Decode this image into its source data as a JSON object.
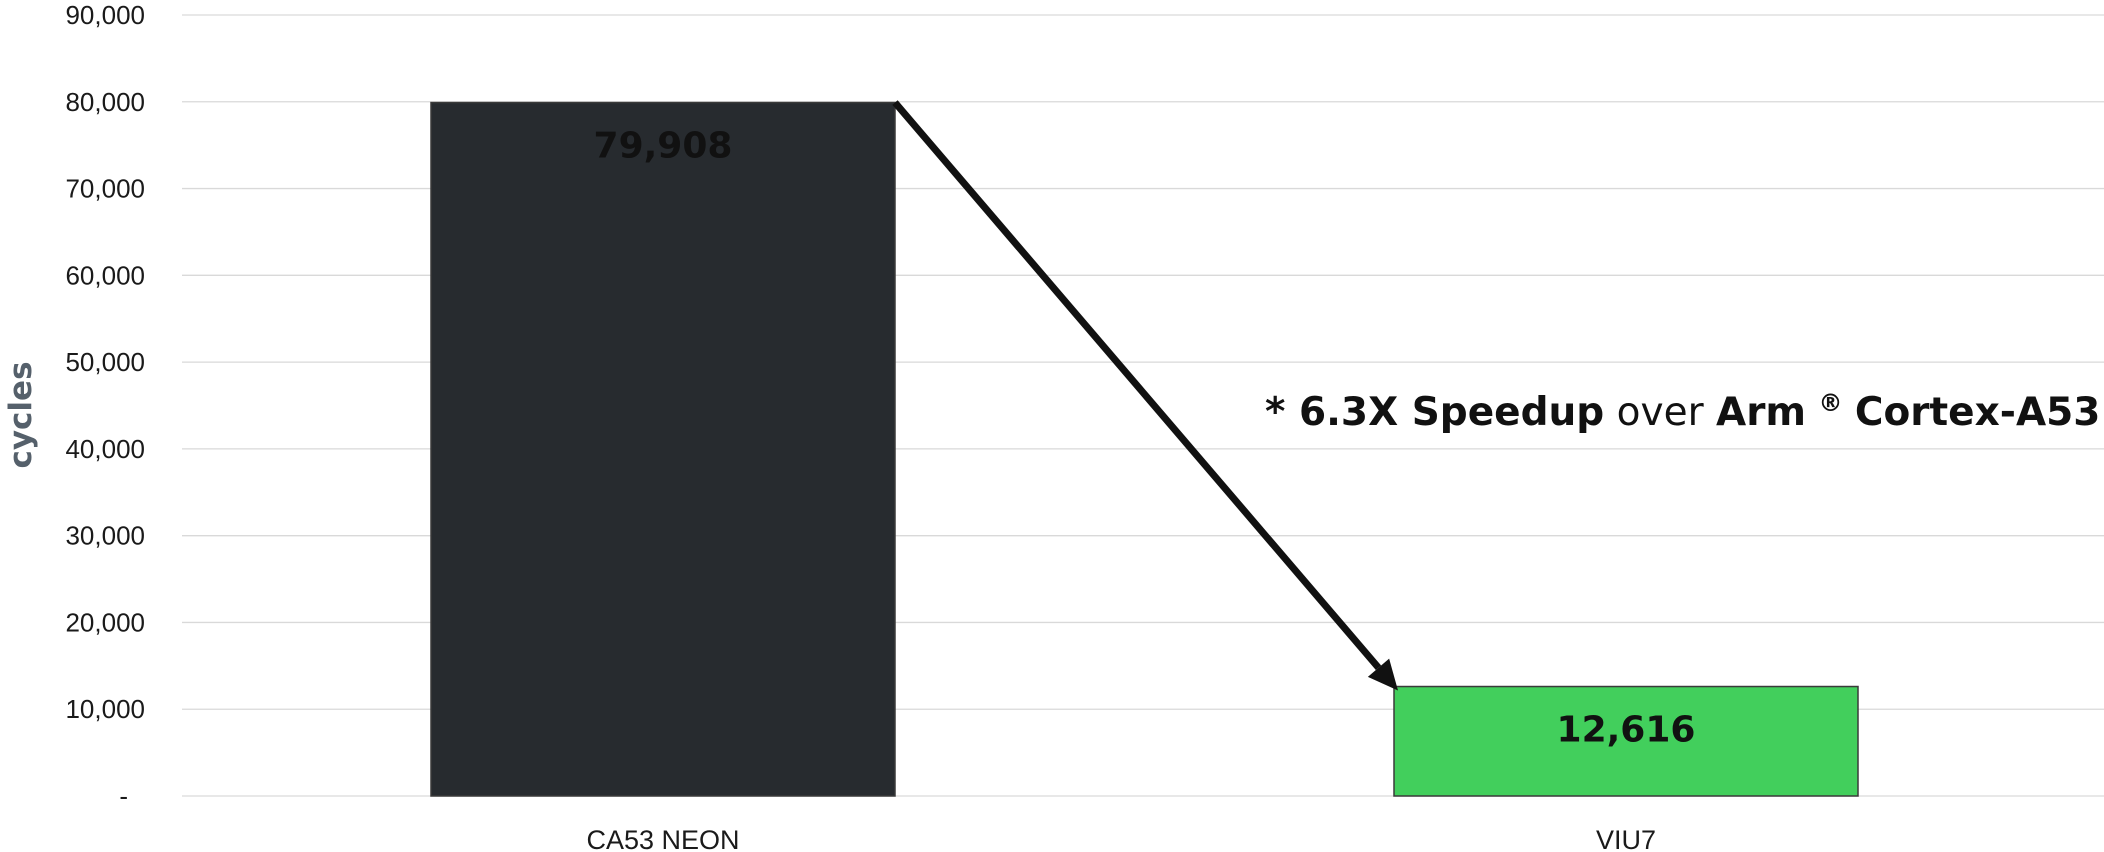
{
  "chart_data": {
    "type": "bar",
    "categories": [
      "CA53 NEON",
      "VIU7"
    ],
    "values": [
      79908,
      12616
    ],
    "value_labels": [
      "79,908",
      "12,616"
    ],
    "colors": [
      "#272b2f",
      "#42cf5c"
    ],
    "ylabel": "cycles",
    "xlabel": "",
    "title": "",
    "ylim": [
      0,
      90000
    ],
    "y_ticks": [
      0,
      10000,
      20000,
      30000,
      40000,
      50000,
      60000,
      70000,
      80000,
      90000
    ],
    "y_tick_labels": [
      "-",
      "10,000",
      "20,000",
      "30,000",
      "40,000",
      "50,000",
      "60,000",
      "70,000",
      "80,000",
      "90,000"
    ],
    "grid": true,
    "annotation": {
      "asterisk": "* ",
      "speedup": "6.3X  Speedup",
      "over": " over ",
      "arm": "Arm",
      "reg_mark": "®",
      "target": " Cortex-A53"
    }
  }
}
